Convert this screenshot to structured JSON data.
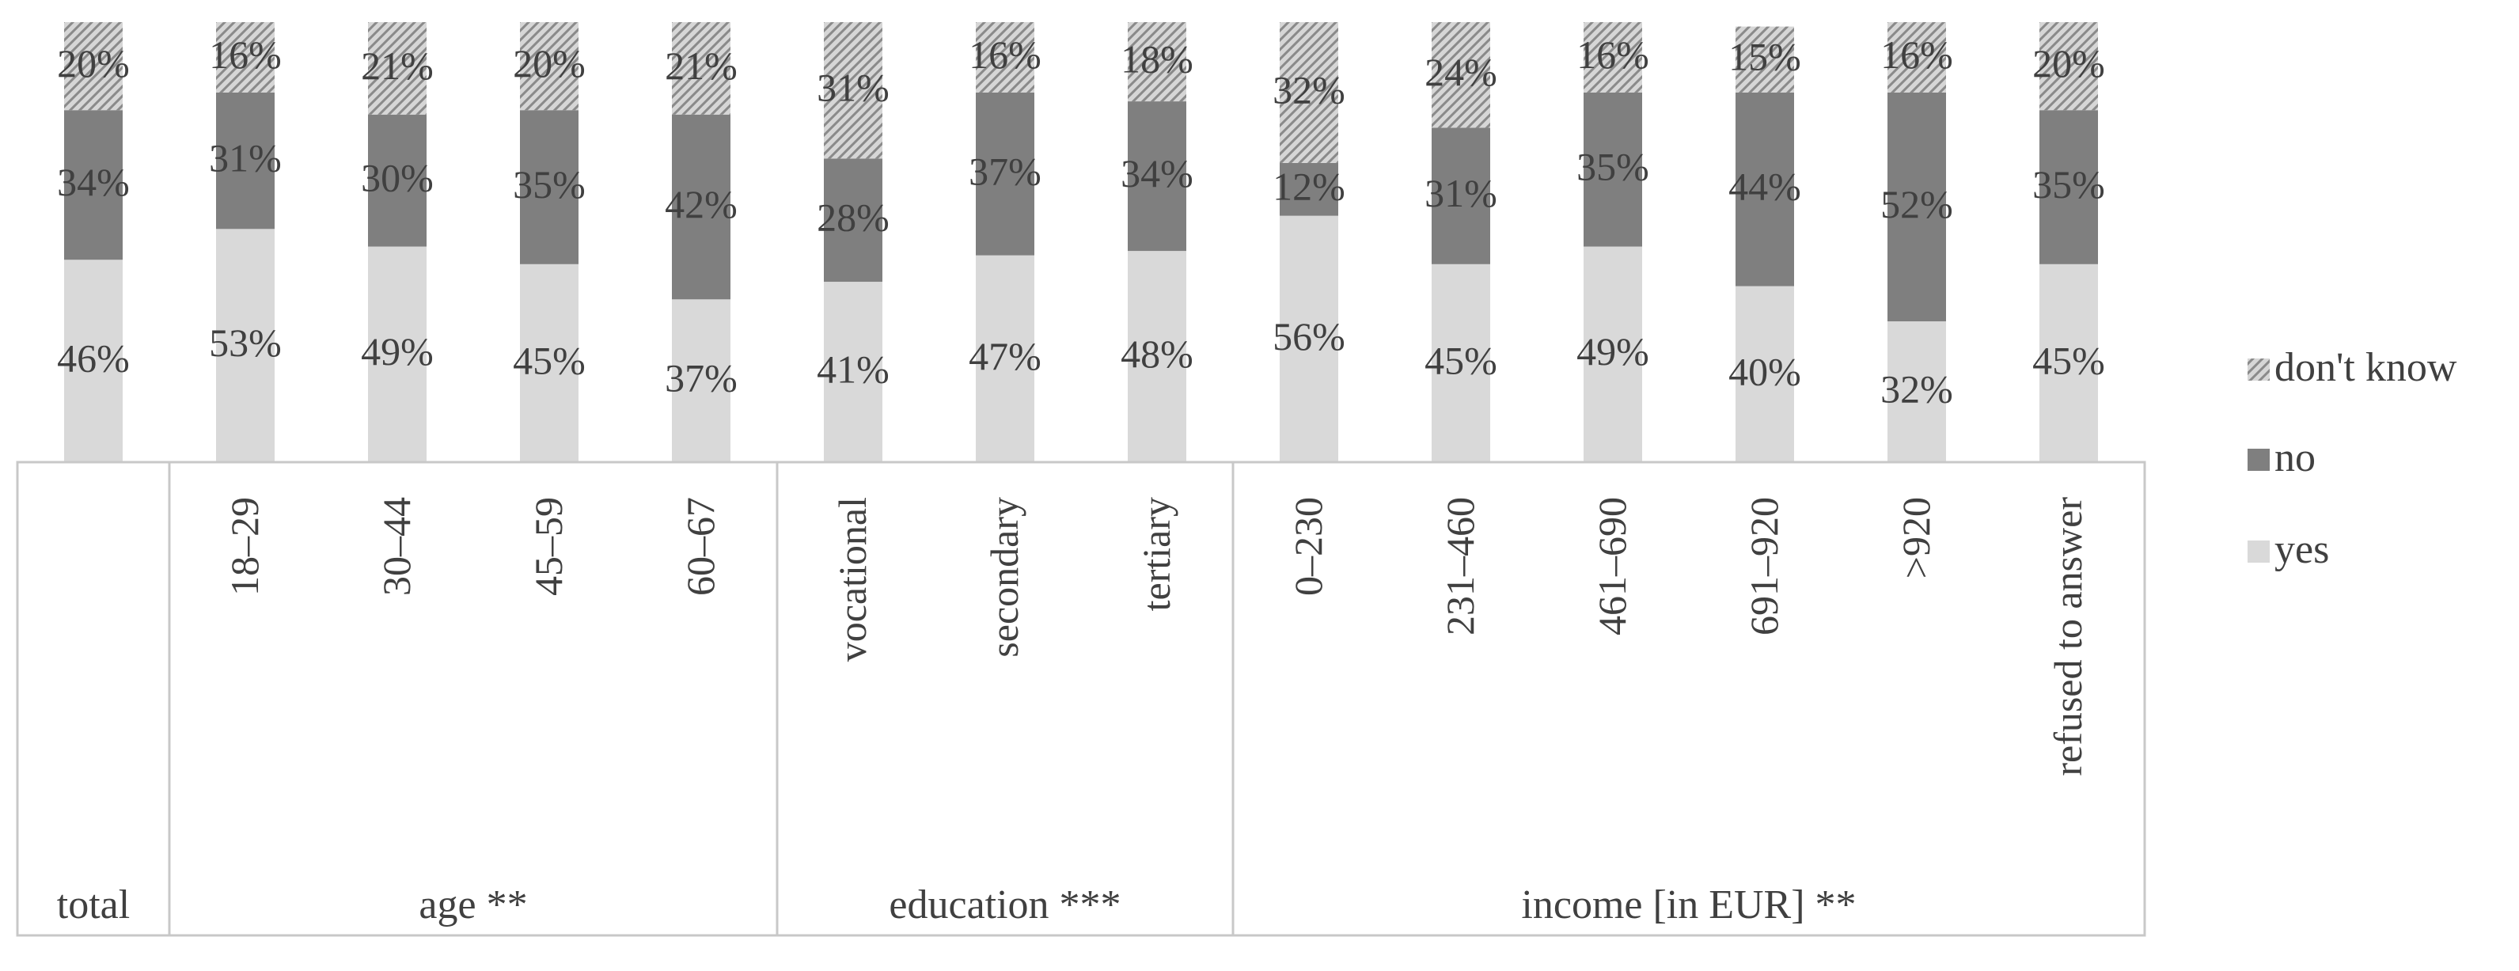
{
  "chart_data": {
    "type": "stacked_bar",
    "stack_mode": "percent",
    "series": [
      {
        "name": "yes",
        "color": "#d9d9d9",
        "values": [
          46,
          53,
          49,
          45,
          37,
          41,
          47,
          48,
          56,
          45,
          49,
          40,
          32,
          45
        ]
      },
      {
        "name": "no",
        "color": "#7f7f7f",
        "values": [
          34,
          31,
          30,
          35,
          42,
          28,
          37,
          34,
          12,
          31,
          35,
          44,
          52,
          35
        ]
      },
      {
        "name": "don't know",
        "color": "#d0d0d0",
        "pattern": "diagonal-hatch",
        "values": [
          20,
          16,
          21,
          20,
          21,
          31,
          16,
          18,
          32,
          24,
          16,
          15,
          16,
          20
        ]
      }
    ],
    "categories": [
      "",
      "18–29",
      "30–44",
      "45–59",
      "60–67",
      "vocational",
      "secondary",
      "tertiary",
      "0–230",
      "231–460",
      "461–690",
      "691–920",
      ">920",
      "refused to answer"
    ],
    "groups": [
      {
        "label": "total",
        "count": 1
      },
      {
        "label": "age **",
        "count": 4
      },
      {
        "label": "education ***",
        "count": 3
      },
      {
        "label": "income [in EUR] **",
        "count": 6
      }
    ],
    "legend": {
      "position": "right",
      "order": [
        "don't know",
        "no",
        "yes"
      ]
    },
    "ylim": [
      0,
      100
    ],
    "grid": false
  }
}
